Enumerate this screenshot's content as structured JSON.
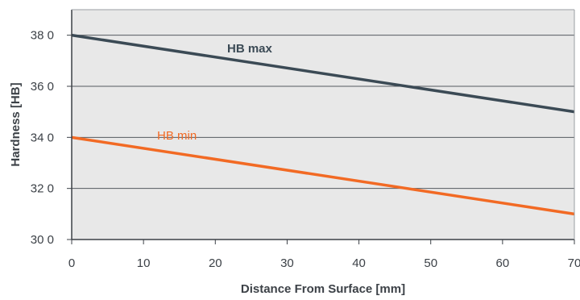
{
  "chart_data": {
    "type": "line",
    "title": "",
    "xlabel": "Distance From Surface [mm]",
    "ylabel": "Hardness [HB]",
    "xlim": [
      0,
      70
    ],
    "ylim": [
      300,
      390
    ],
    "x_ticks": [
      0,
      10,
      20,
      30,
      40,
      50,
      60,
      70
    ],
    "y_ticks": [
      300,
      320,
      340,
      360,
      380
    ],
    "y_tick_labels": [
      "30 0",
      "32 0",
      "34 0",
      "36 0",
      "38 0"
    ],
    "grid": true,
    "background": "#e8e8e8",
    "legend": "inline labels",
    "series": [
      {
        "name": "HB max",
        "color": "#3b4a55",
        "x": [
          0,
          70
        ],
        "y": [
          380,
          350
        ]
      },
      {
        "name": "HB min",
        "color": "#f26a24",
        "x": [
          0,
          70
        ],
        "y": [
          340,
          310
        ]
      }
    ]
  }
}
